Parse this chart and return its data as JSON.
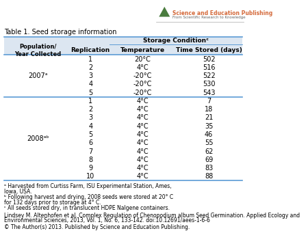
{
  "title": "Table 1. Seed storage information",
  "header_row1": [
    "",
    "",
    "Storage Conditionᶜ",
    ""
  ],
  "header_row2": [
    "Population/\nYear Collected",
    "Replication",
    "Temperature",
    "Time Stored (days)"
  ],
  "data_2007": [
    [
      "2007ᵃ",
      "1",
      "20°C",
      "502"
    ],
    [
      "",
      "2",
      "4°C",
      "516"
    ],
    [
      "",
      "3",
      "-20°C",
      "522"
    ],
    [
      "",
      "4",
      "-20°C",
      "530"
    ],
    [
      "",
      "5",
      "-20°C",
      "543"
    ]
  ],
  "data_2008": [
    [
      "2008ᵃᵇ",
      "1",
      "4°C",
      "7"
    ],
    [
      "",
      "2",
      "4°C",
      "18"
    ],
    [
      "",
      "3",
      "4°C",
      "21"
    ],
    [
      "",
      "4",
      "4°C",
      "35"
    ],
    [
      "",
      "5",
      "4°C",
      "46"
    ],
    [
      "",
      "6",
      "4°C",
      "55"
    ],
    [
      "",
      "7",
      "4°C",
      "62"
    ],
    [
      "",
      "8",
      "4°C",
      "69"
    ],
    [
      "",
      "9",
      "4°C",
      "83"
    ],
    [
      "",
      "10",
      "4°C",
      "88"
    ]
  ],
  "footnotes": [
    "ᵃ Harvested from Curtiss Farm, ISU Experimental Station, Ames,",
    "Iowa, USA.",
    "ᵇ Following harvest and drying, 2008 seeds were stored at 20° C",
    "for 132 days prior to storage at 4° C.",
    "ᶜ All seeds stored dry, in translucent HDPE Nalgene containers."
  ],
  "citation": "Lindsey M. Altenhofen et al. Complex Regulation of Chenopodium album Seed Germination. Applied Ecology and\nEnvironmental Sciences, 2013, Vol. 1, No. 6, 133-142. doi:10.12691/aees-1-6-6",
  "copyright": "© The Author(s) 2013. Published by Science and Education Publishing.",
  "header_bg": "#dce6f1",
  "table_border_color": "#5b9bd5",
  "bg_color": "#ffffff",
  "text_color": "#000000",
  "logo_color_green": "#4a7c3f",
  "logo_color_orange": "#d4693a"
}
